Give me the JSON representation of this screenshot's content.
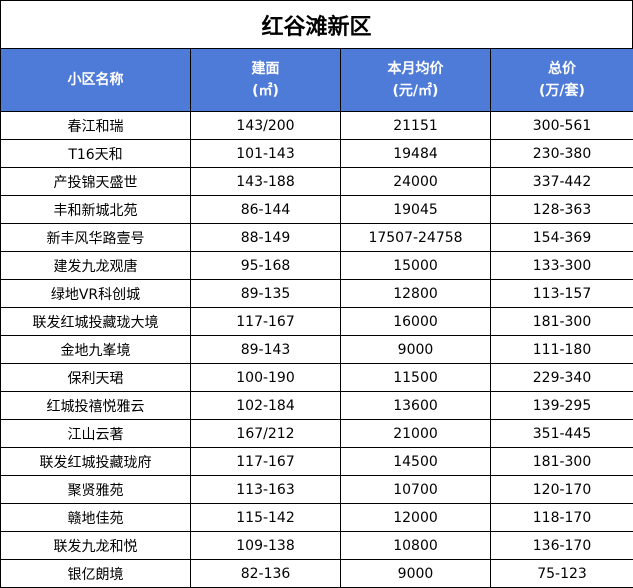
{
  "title": "红谷滩新区",
  "headers": {
    "name": "小区名称",
    "area_line1": "建面",
    "area_line2": "(㎡)",
    "price_line1": "本月均价",
    "price_line2": "(元/㎡)",
    "total_line1": "总价",
    "total_line2": "(万/套)"
  },
  "rows": [
    {
      "name": "春江和瑞",
      "area": "143/200",
      "price": "21151",
      "total": "300-561"
    },
    {
      "name": "T16天和",
      "area": "101-143",
      "price": "19484",
      "total": "230-380"
    },
    {
      "name": "产投锦天盛世",
      "area": "143-188",
      "price": "24000",
      "total": "337-442"
    },
    {
      "name": "丰和新城北苑",
      "area": "86-144",
      "price": "19045",
      "total": "128-363"
    },
    {
      "name": "新丰风华路壹号",
      "area": "88-149",
      "price": "17507-24758",
      "total": "154-369"
    },
    {
      "name": "建发九龙观唐",
      "area": "95-168",
      "price": "15000",
      "total": "133-300"
    },
    {
      "name": "绿地VR科创城",
      "area": "89-135",
      "price": "12800",
      "total": "113-157"
    },
    {
      "name": "联发红城投藏珑大境",
      "area": "117-167",
      "price": "16000",
      "total": "181-300"
    },
    {
      "name": "金地九峯境",
      "area": "89-143",
      "price": "9000",
      "total": "111-180"
    },
    {
      "name": "保利天珺",
      "area": "100-190",
      "price": "11500",
      "total": "229-340"
    },
    {
      "name": "红城投禧悦雅云",
      "area": "102-184",
      "price": "13600",
      "total": "139-295"
    },
    {
      "name": "江山云著",
      "area": "167/212",
      "price": "21000",
      "total": "351-445"
    },
    {
      "name": "联发红城投藏珑府",
      "area": "117-167",
      "price": "14500",
      "total": "181-300"
    },
    {
      "name": "聚贤雅苑",
      "area": "113-163",
      "price": "10700",
      "total": "120-170"
    },
    {
      "name": "赣地佳苑",
      "area": "115-142",
      "price": "12000",
      "total": "118-170"
    },
    {
      "name": "联发九龙和悦",
      "area": "109-138",
      "price": "10800",
      "total": "136-170"
    },
    {
      "name": "银亿朗境",
      "area": "82-136",
      "price": "9000",
      "total": "75-123"
    }
  ],
  "colors": {
    "header_bg": "#4f7bd8",
    "header_text": "#ffffff",
    "border": "#000000"
  }
}
